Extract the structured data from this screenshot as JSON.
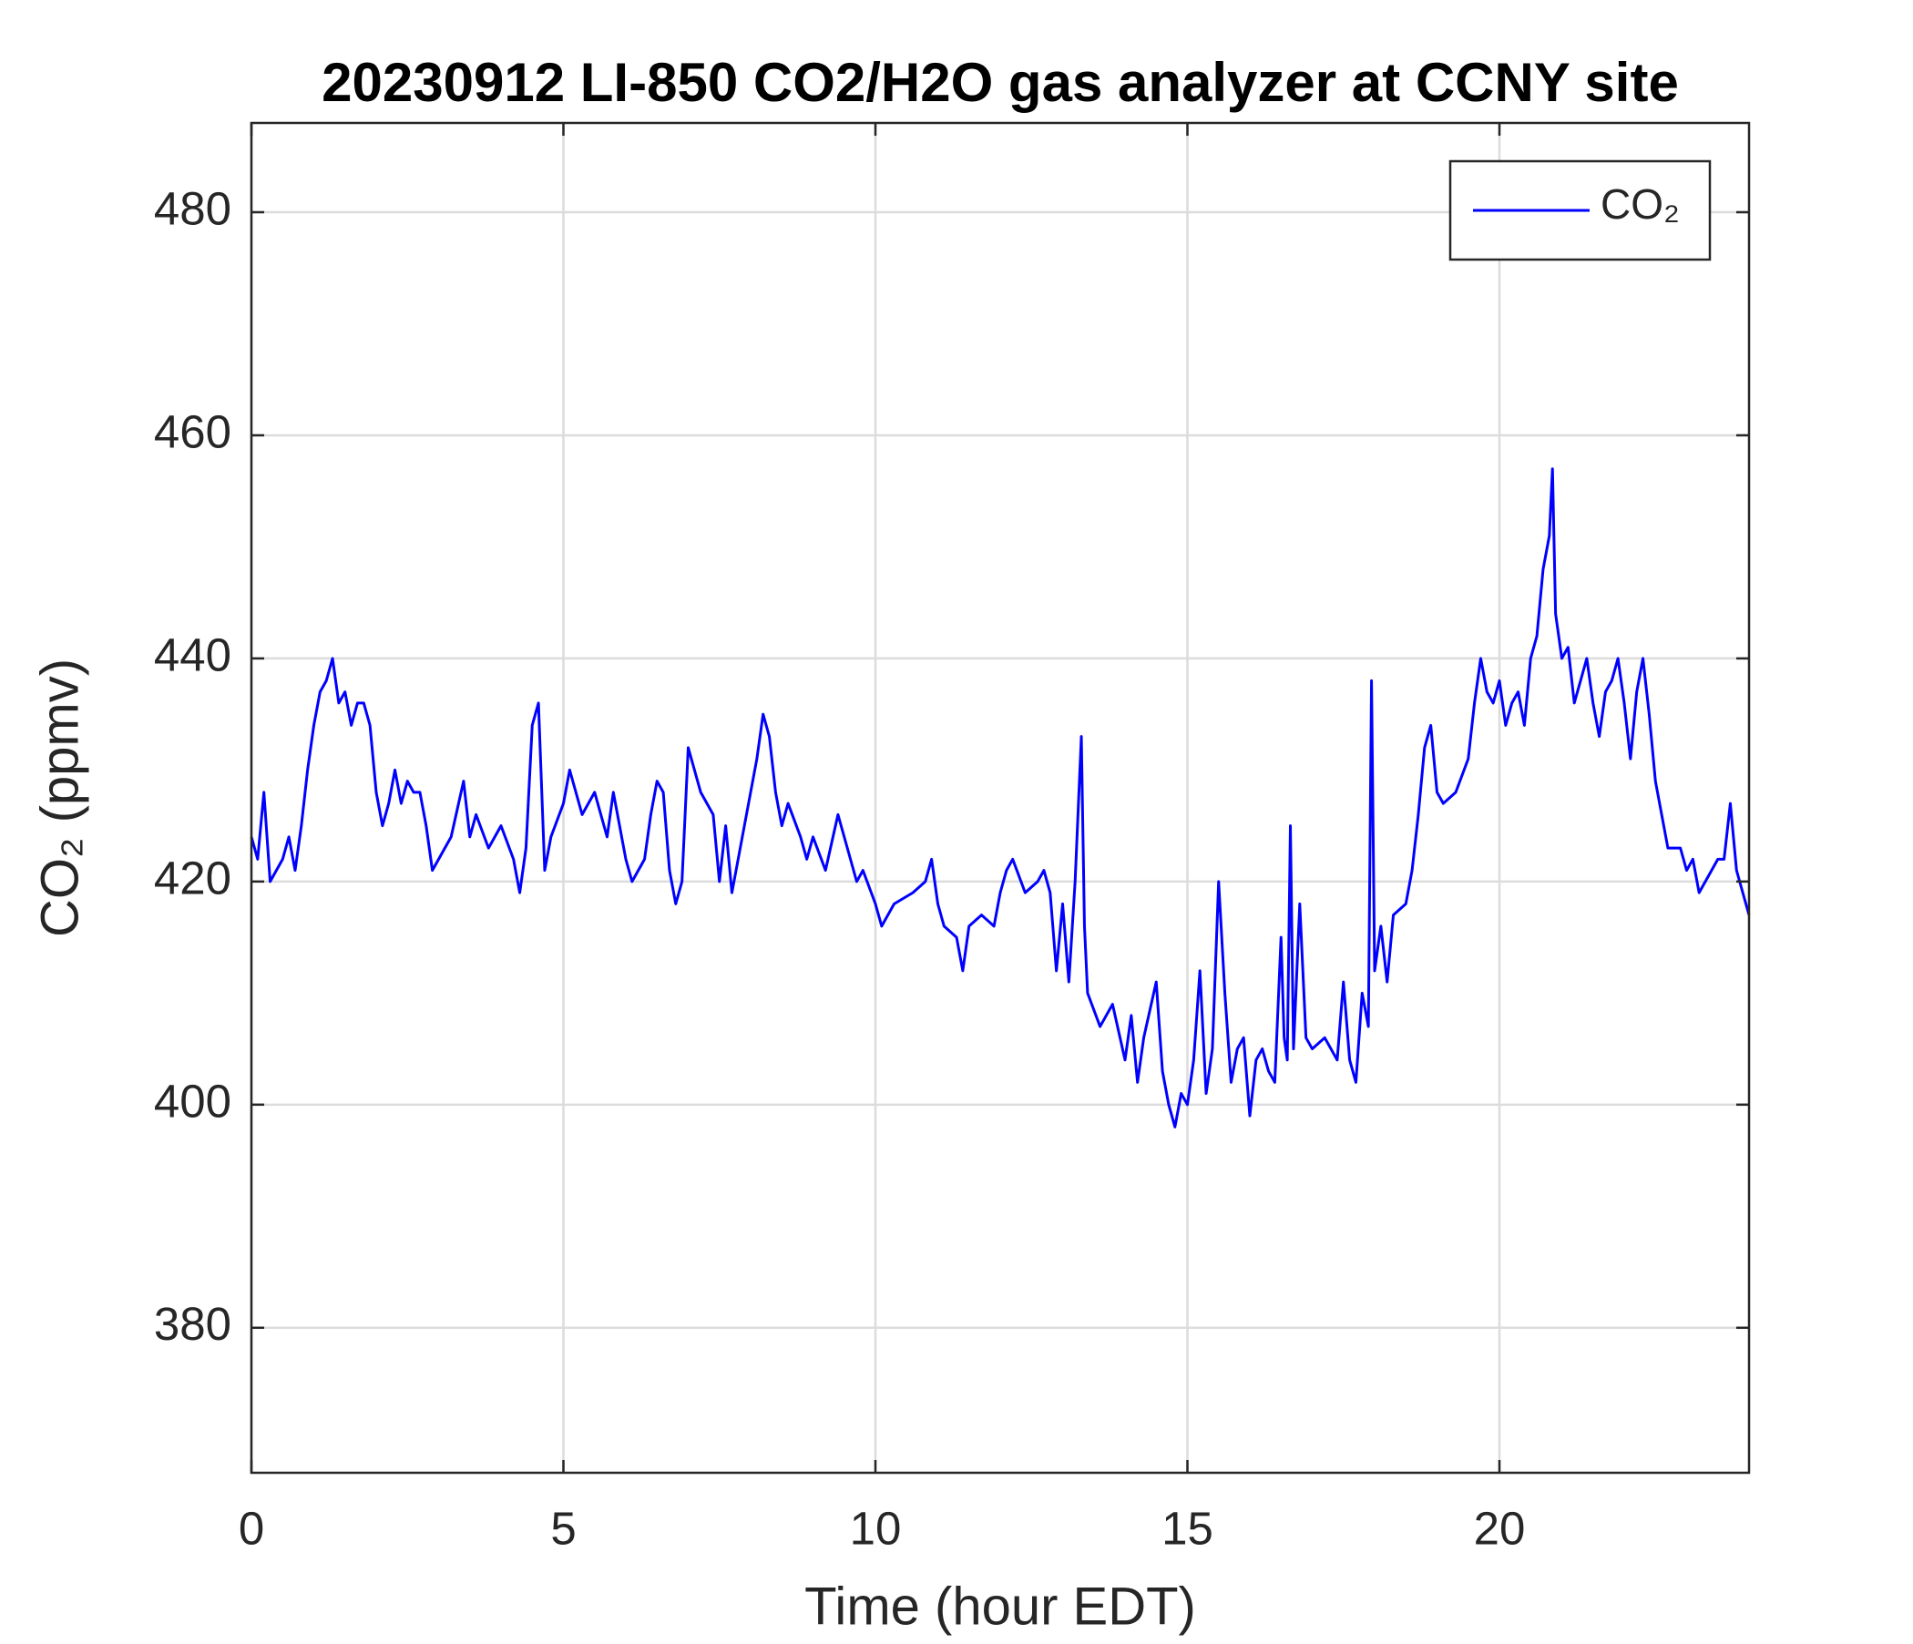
{
  "chart_data": {
    "type": "line",
    "title": "20230912 LI-850 CO2/H2O gas analyzer at CCNY site",
    "x_label": "Time (hour EDT)",
    "y_label": "CO₂ (ppmv)",
    "xlim": [
      0,
      24
    ],
    "ylim": [
      367,
      488
    ],
    "xticks": [
      0,
      5,
      10,
      15,
      20
    ],
    "yticks": [
      380,
      400,
      420,
      440,
      460,
      480
    ],
    "grid": true,
    "legend": "top-right",
    "x": [
      0,
      0.1,
      0.2,
      0.3,
      0.4,
      0.5,
      0.6,
      0.7,
      0.8,
      0.9,
      1.0,
      1.1,
      1.2,
      1.3,
      1.4,
      1.5,
      1.6,
      1.7,
      1.8,
      1.9,
      2.0,
      2.1,
      2.2,
      2.3,
      2.4,
      2.5,
      2.6,
      2.7,
      2.8,
      2.9,
      3.0,
      3.2,
      3.4,
      3.5,
      3.6,
      3.8,
      4.0,
      4.2,
      4.3,
      4.4,
      4.5,
      4.6,
      4.7,
      4.8,
      5.0,
      5.1,
      5.3,
      5.5,
      5.7,
      5.8,
      6.0,
      6.1,
      6.3,
      6.4,
      6.5,
      6.6,
      6.7,
      6.8,
      6.9,
      7.0,
      7.1,
      7.2,
      7.4,
      7.5,
      7.6,
      7.7,
      7.8,
      8.0,
      8.1,
      8.2,
      8.3,
      8.4,
      8.5,
      8.6,
      8.8,
      8.9,
      9.0,
      9.2,
      9.4,
      9.5,
      9.7,
      9.8,
      10.0,
      10.1,
      10.3,
      10.6,
      10.8,
      10.9,
      11.0,
      11.1,
      11.3,
      11.4,
      11.5,
      11.7,
      11.9,
      12.0,
      12.1,
      12.2,
      12.4,
      12.6,
      12.7,
      12.8,
      12.9,
      13.0,
      13.1,
      13.2,
      13.3,
      13.35,
      13.4,
      13.6,
      13.8,
      14.0,
      14.1,
      14.2,
      14.3,
      14.5,
      14.6,
      14.7,
      14.8,
      14.9,
      15.0,
      15.1,
      15.2,
      15.3,
      15.4,
      15.5,
      15.6,
      15.7,
      15.8,
      15.9,
      16.0,
      16.1,
      16.2,
      16.3,
      16.4,
      16.5,
      16.55,
      16.6,
      16.65,
      16.7,
      16.8,
      16.9,
      17.0,
      17.2,
      17.4,
      17.5,
      17.6,
      17.7,
      17.8,
      17.9,
      17.95,
      18.0,
      18.1,
      18.2,
      18.3,
      18.5,
      18.6,
      18.7,
      18.8,
      18.9,
      19.0,
      19.1,
      19.3,
      19.5,
      19.6,
      19.7,
      19.8,
      19.9,
      20.0,
      20.1,
      20.2,
      20.3,
      20.4,
      20.5,
      20.6,
      20.7,
      20.8,
      20.85,
      20.9,
      21.0,
      21.1,
      21.2,
      21.3,
      21.4,
      21.5,
      21.6,
      21.7,
      21.8,
      21.9,
      22.0,
      22.1,
      22.2,
      22.3,
      22.4,
      22.5,
      22.6,
      22.7,
      22.9,
      23.0,
      23.1,
      23.2,
      23.4,
      23.5,
      23.6,
      23.7,
      23.8,
      23.9,
      24.0
    ],
    "series": [
      {
        "name": "CO₂",
        "color": "#0000ff",
        "values": [
          424,
          422,
          428,
          420,
          421,
          422,
          424,
          421,
          425,
          430,
          434,
          437,
          438,
          440,
          436,
          437,
          434,
          436,
          436,
          434,
          428,
          425,
          427,
          430,
          427,
          429,
          428,
          428,
          425,
          421,
          422,
          424,
          429,
          424,
          426,
          423,
          425,
          422,
          419,
          423,
          434,
          436,
          421,
          424,
          427,
          430,
          426,
          428,
          424,
          428,
          422,
          420,
          422,
          426,
          429,
          428,
          421,
          418,
          420,
          432,
          430,
          428,
          426,
          420,
          425,
          419,
          422,
          428,
          431,
          435,
          433,
          428,
          425,
          427,
          424,
          422,
          424,
          421,
          426,
          424,
          420,
          421,
          418,
          416,
          418,
          419,
          420,
          422,
          418,
          416,
          415,
          412,
          416,
          417,
          416,
          419,
          421,
          422,
          419,
          420,
          421,
          419,
          412,
          418,
          411,
          420,
          433,
          416,
          410,
          407,
          409,
          404,
          408,
          402,
          406,
          411,
          403,
          400,
          398,
          401,
          400,
          404,
          412,
          401,
          405,
          420,
          410,
          402,
          405,
          406,
          399,
          404,
          405,
          403,
          402,
          415,
          406,
          404,
          425,
          405,
          418,
          406,
          405,
          406,
          404,
          411,
          404,
          402,
          410,
          407,
          438,
          412,
          416,
          411,
          417,
          418,
          421,
          426,
          432,
          434,
          428,
          427,
          428,
          431,
          436,
          440,
          437,
          436,
          438,
          434,
          436,
          437,
          434,
          440,
          442,
          448,
          451,
          457,
          444,
          440,
          441,
          436,
          438,
          440,
          436,
          433,
          437,
          438,
          440,
          436,
          431,
          437,
          440,
          435,
          429,
          426,
          423,
          423,
          421,
          422,
          419,
          421,
          422,
          422,
          427,
          421,
          419,
          417
        ]
      }
    ]
  }
}
